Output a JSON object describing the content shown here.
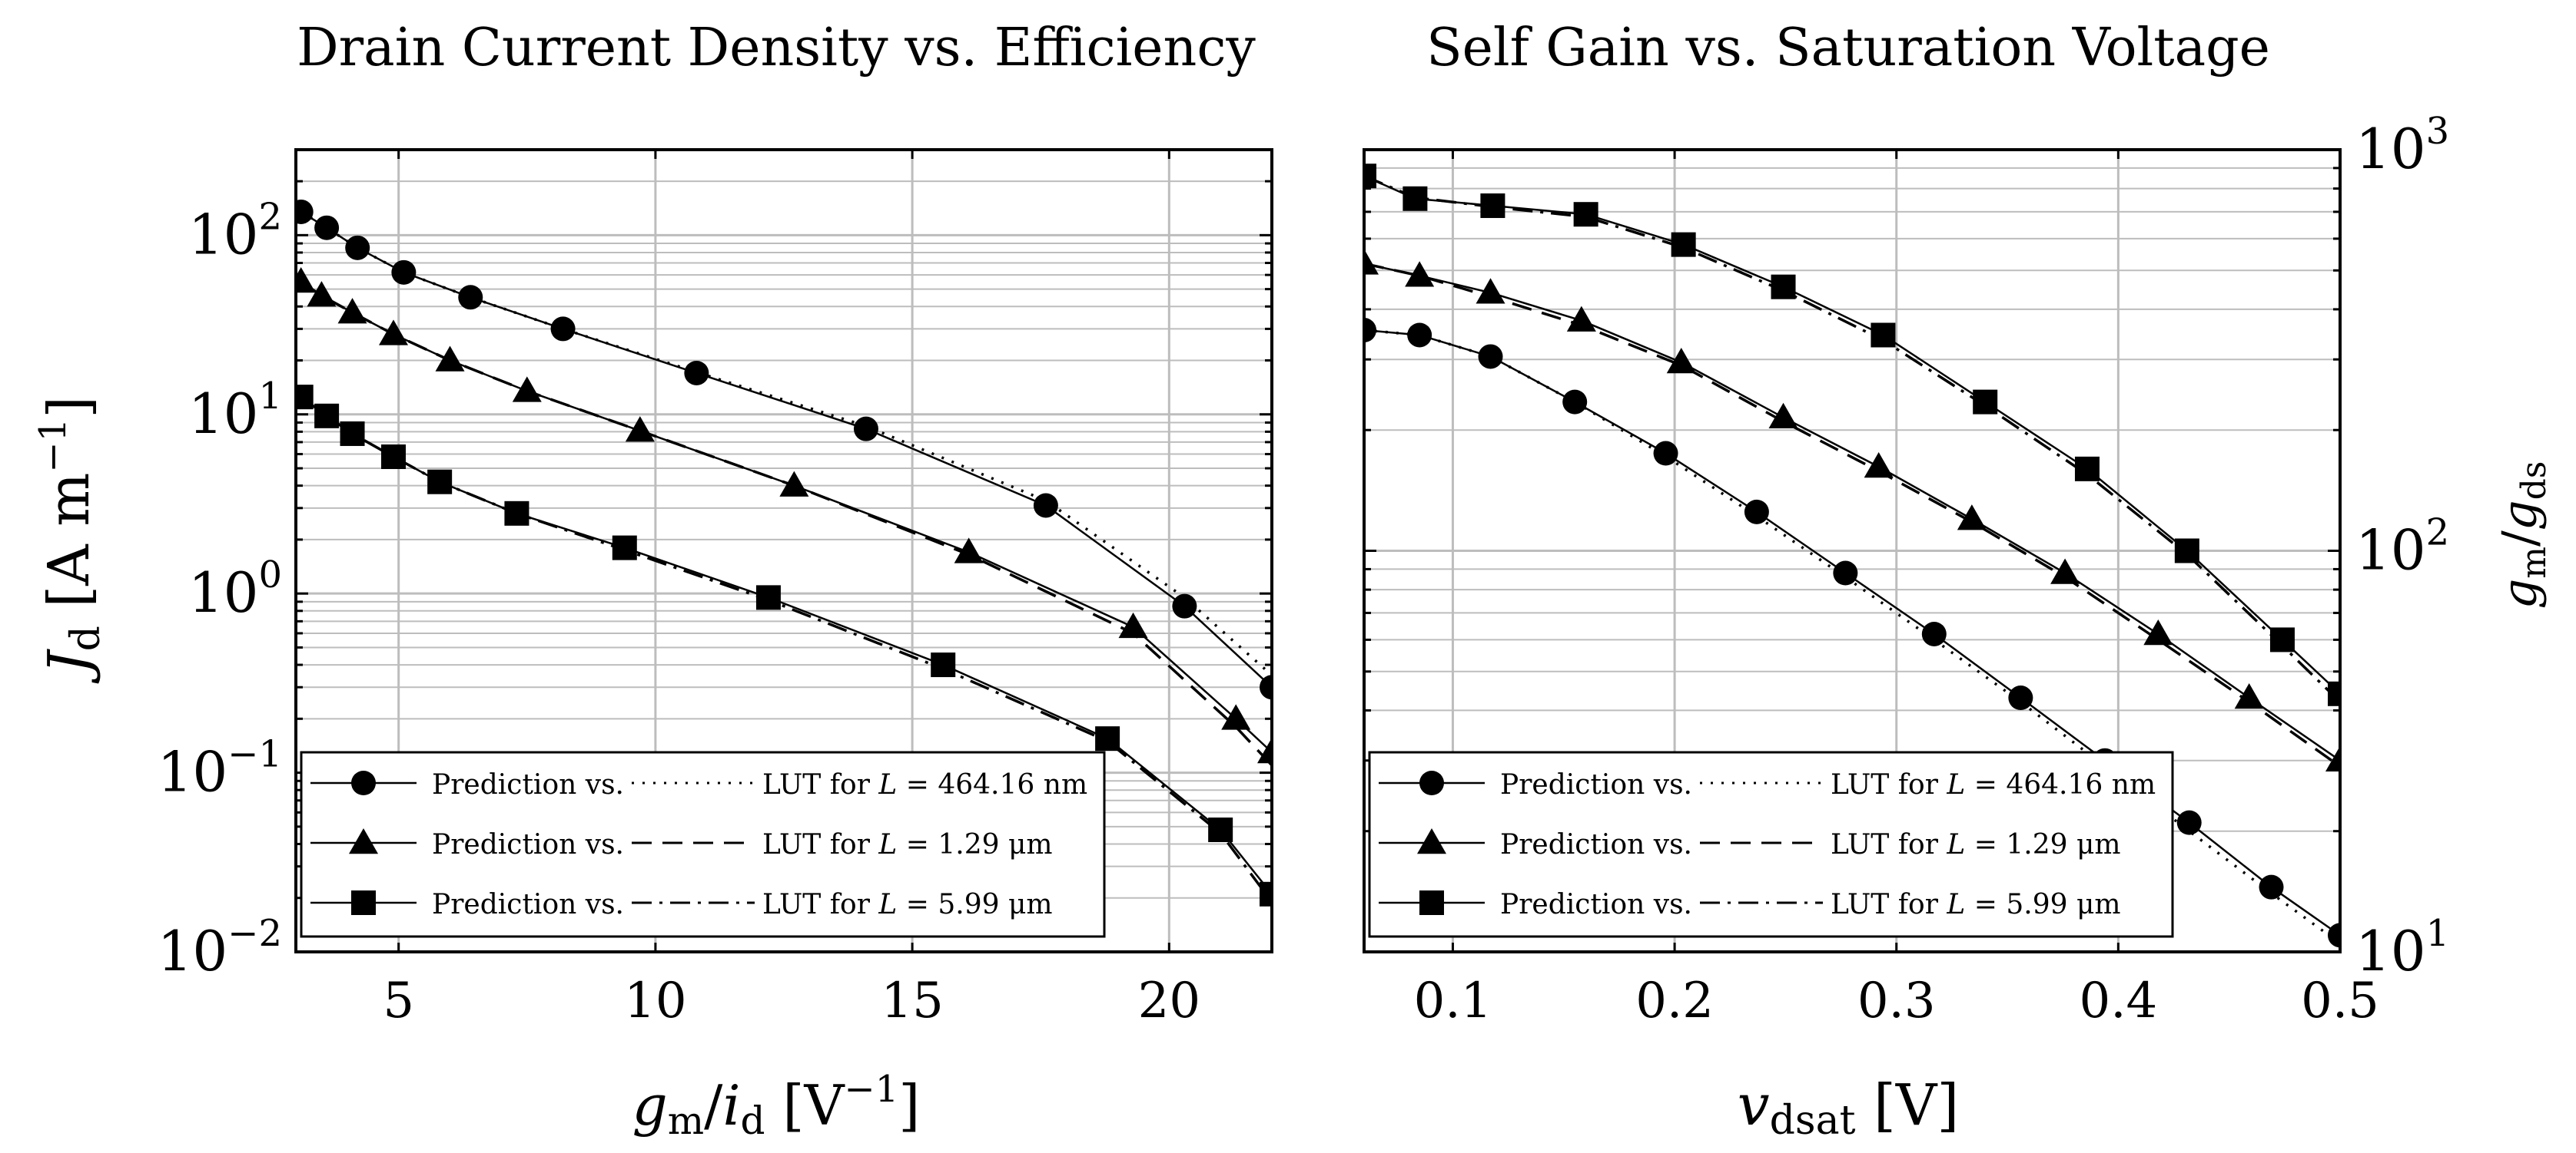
{
  "figure": {
    "left_title": "Drain Current Density vs. Efficiency",
    "right_title": "Self Gain vs. Saturation Voltage"
  },
  "colors": {
    "ink": "#000000",
    "grid": "#bdbdbd",
    "background": "#ffffff"
  },
  "legend_labels": {
    "prefix": "Prediction vs.",
    "lut": "LUT for ",
    "var": "L",
    "eq": " = ",
    "values": [
      "464.16 nm",
      "1.29 μm",
      "5.99 μm"
    ],
    "markers": [
      "circle-icon",
      "triangle-icon",
      "square-icon"
    ],
    "lut_styles": [
      "dotted",
      "dashed",
      "dash-dot"
    ]
  },
  "chart_data": [
    {
      "type": "line",
      "title": "Drain Current Density vs. Efficiency",
      "xlabel": "gm/id [V^-1]",
      "ylabel": "Jd [A m^-1]",
      "xlim": [
        3,
        22
      ],
      "ylim": [
        0.01,
        300
      ],
      "yscale": "log",
      "xticks": [
        5,
        10,
        15,
        20
      ],
      "xtick_labels": [
        "5",
        "10",
        "15",
        "20"
      ],
      "yticks": [
        0.01,
        0.1,
        1,
        10,
        100
      ],
      "ytick_labels": [
        [
          "10",
          "−2"
        ],
        [
          "10",
          "−1"
        ],
        [
          "10",
          "0"
        ],
        [
          "10",
          "1"
        ],
        [
          "10",
          "2"
        ]
      ],
      "grid": true,
      "legend_position": "bottom-left",
      "series": [
        {
          "name": "Prediction vs. LUT for L = 464.16 nm",
          "marker": "circle",
          "lut_style": "dotted",
          "x": [
            3.1,
            3.6,
            4.2,
            5.1,
            6.4,
            8.2,
            10.8,
            14.1,
            17.6,
            20.3,
            22.0
          ],
          "y": [
            135,
            110,
            85,
            62,
            45,
            30,
            17,
            8.3,
            3.1,
            0.85,
            0.3
          ],
          "lut_y": [
            135,
            110,
            85,
            62,
            45,
            30,
            17.2,
            8.6,
            3.3,
            0.95,
            0.35
          ]
        },
        {
          "name": "Prediction vs. LUT for L = 1.29 μm",
          "marker": "triangle",
          "lut_style": "dashed",
          "x": [
            3.1,
            3.5,
            4.1,
            4.9,
            6.0,
            7.5,
            9.7,
            12.7,
            16.1,
            19.3,
            21.3,
            22.0
          ],
          "y": [
            55,
            46,
            37,
            28,
            20,
            13.5,
            8.1,
            4.0,
            1.7,
            0.65,
            0.2,
            0.13
          ],
          "lut_y": [
            55,
            46,
            37,
            28,
            20,
            13.5,
            8.1,
            4.0,
            1.65,
            0.6,
            0.18,
            0.11
          ]
        },
        {
          "name": "Prediction vs. LUT for L = 5.99 μm",
          "marker": "square",
          "lut_style": "dash-dot",
          "x": [
            3.1,
            3.6,
            4.1,
            4.9,
            5.8,
            7.3,
            9.4,
            12.2,
            15.6,
            18.8,
            21.0,
            22.0
          ],
          "y": [
            12.5,
            9.8,
            7.8,
            5.8,
            4.2,
            2.8,
            1.8,
            0.95,
            0.4,
            0.155,
            0.048,
            0.021
          ],
          "lut_y": [
            12.5,
            9.8,
            7.8,
            5.8,
            4.2,
            2.8,
            1.75,
            0.92,
            0.38,
            0.15,
            0.046,
            0.019
          ]
        }
      ]
    },
    {
      "type": "line",
      "title": "Self Gain vs. Saturation Voltage",
      "xlabel": "vdsat [V]",
      "ylabel": "gm/gds",
      "xlim": [
        0.06,
        0.5
      ],
      "ylim": [
        10,
        1000
      ],
      "yscale": "log",
      "y_axis_side": "right",
      "xticks": [
        0.1,
        0.2,
        0.3,
        0.4,
        0.5
      ],
      "xtick_labels": [
        "0.1",
        "0.2",
        "0.3",
        "0.4",
        "0.5"
      ],
      "yticks": [
        10,
        100,
        1000
      ],
      "ytick_labels": [
        [
          "10",
          "1"
        ],
        [
          "10",
          "2"
        ],
        [
          "10",
          "3"
        ]
      ],
      "grid": true,
      "legend_position": "bottom-left",
      "series": [
        {
          "name": "Prediction vs. LUT for L = 464.16 nm",
          "marker": "circle",
          "lut_style": "dotted",
          "x": [
            0.06,
            0.085,
            0.117,
            0.155,
            0.196,
            0.237,
            0.277,
            0.317,
            0.356,
            0.394,
            0.432,
            0.469,
            0.5
          ],
          "y": [
            355,
            345,
            305,
            235,
            175,
            125,
            88,
            62,
            43,
            30,
            21,
            14.5,
            11
          ],
          "lut_y": [
            355,
            345,
            305,
            235,
            172,
            122,
            86,
            60,
            42,
            29,
            20,
            14,
            10.5
          ]
        },
        {
          "name": "Prediction vs. LUT for L = 1.29 μm",
          "marker": "triangle",
          "lut_style": "dashed",
          "x": [
            0.06,
            0.085,
            0.117,
            0.158,
            0.203,
            0.249,
            0.292,
            0.334,
            0.376,
            0.418,
            0.459,
            0.5
          ],
          "y": [
            520,
            485,
            440,
            375,
            295,
            215,
            162,
            120,
            88,
            62,
            43,
            30
          ],
          "lut_y": [
            520,
            485,
            430,
            365,
            290,
            210,
            158,
            118,
            86,
            60,
            42,
            29
          ]
        },
        {
          "name": "Prediction vs. LUT for L = 5.99 μm",
          "marker": "square",
          "lut_style": "dash-dot",
          "x": [
            0.06,
            0.083,
            0.118,
            0.16,
            0.204,
            0.249,
            0.294,
            0.34,
            0.386,
            0.431,
            0.474,
            0.5
          ],
          "y": [
            860,
            755,
            725,
            690,
            580,
            455,
            345,
            235,
            160,
            100,
            60,
            44
          ],
          "lut_y": [
            860,
            760,
            720,
            680,
            570,
            445,
            335,
            230,
            155,
            98,
            58,
            42
          ]
        }
      ]
    }
  ]
}
